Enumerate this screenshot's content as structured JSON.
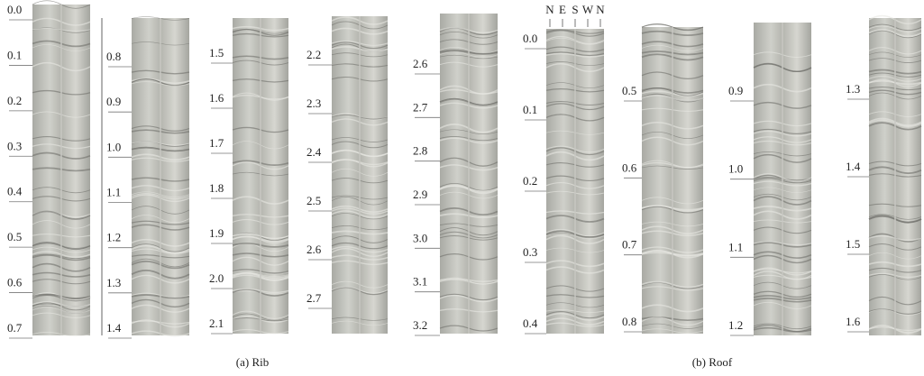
{
  "panels": [
    {
      "caption": "(a) Rib",
      "strips": [
        {
          "depths": [
            "0.0",
            "0.1",
            "0.2",
            "0.3",
            "0.4",
            "0.5",
            "0.6",
            "0.7"
          ]
        },
        {
          "depths": [
            "0.8",
            "0.9",
            "1.0",
            "1.1",
            "1.2",
            "1.3",
            "1.4"
          ]
        },
        {
          "depths": [
            "1.5",
            "1.6",
            "1.7",
            "1.8",
            "1.9",
            "2.0",
            "2.1"
          ]
        },
        {
          "depths": [
            "2.2",
            "2.3",
            "2.4",
            "2.5",
            "2.6",
            "2.7"
          ]
        },
        {
          "depths": [
            "2.6",
            "2.7",
            "2.8",
            "2.9",
            "3.0",
            "3.1",
            "3.2"
          ]
        }
      ]
    },
    {
      "caption": "(b) Roof",
      "orientation": [
        "N",
        "E",
        "S",
        "W",
        "N"
      ],
      "strips": [
        {
          "depths": [
            "0.0",
            "0.1",
            "0.2",
            "0.3",
            "0.4"
          ]
        },
        {
          "depths": [
            "0.5",
            "0.6",
            "0.7",
            "0.8"
          ]
        },
        {
          "depths": [
            "0.9",
            "1.0",
            "1.1",
            "1.2"
          ]
        },
        {
          "depths": [
            "1.3",
            "1.4",
            "1.5",
            "1.6"
          ]
        }
      ]
    }
  ]
}
